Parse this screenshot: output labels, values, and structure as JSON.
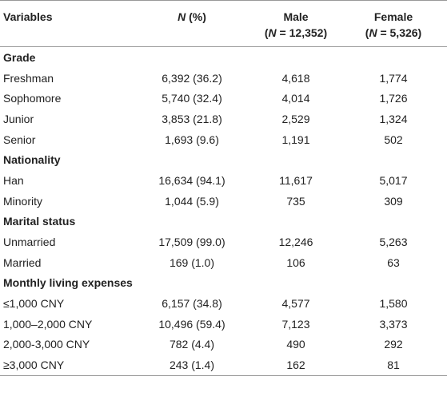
{
  "header": {
    "cells": [
      [
        [
          {
            "text": "Variables",
            "italic": false
          }
        ]
      ],
      [
        [
          {
            "text": "N",
            "italic": true
          },
          {
            "text": " (%)",
            "italic": false
          }
        ]
      ],
      [
        [
          {
            "text": "Male",
            "italic": false
          }
        ],
        [
          {
            "text": "(",
            "italic": false
          },
          {
            "text": "N",
            "italic": true
          },
          {
            "text": " = 12,352)",
            "italic": false
          }
        ]
      ],
      [
        [
          {
            "text": "Female",
            "italic": false
          }
        ],
        [
          {
            "text": "(",
            "italic": false
          },
          {
            "text": "N",
            "italic": true
          },
          {
            "text": " = 5,326)",
            "italic": false
          }
        ]
      ]
    ]
  },
  "sections": [
    {
      "title": "Grade",
      "rows": [
        [
          "Freshman",
          "6,392 (36.2)",
          "4,618",
          "1,774"
        ],
        [
          "Sophomore",
          "5,740 (32.4)",
          "4,014",
          "1,726"
        ],
        [
          "Junior",
          "3,853 (21.8)",
          "2,529",
          "1,324"
        ],
        [
          "Senior",
          "1,693 (9.6)",
          "1,191",
          "502"
        ]
      ]
    },
    {
      "title": "Nationality",
      "rows": [
        [
          "Han",
          "16,634 (94.1)",
          "11,617",
          "5,017"
        ],
        [
          "Minority",
          "1,044 (5.9)",
          "735",
          "309"
        ]
      ]
    },
    {
      "title": "Marital status",
      "rows": [
        [
          "Unmarried",
          "17,509 (99.0)",
          "12,246",
          "5,263"
        ],
        [
          "Married",
          "169 (1.0)",
          "106",
          "63"
        ]
      ]
    },
    {
      "title": "Monthly living expenses",
      "rows": [
        [
          "≤1,000 CNY",
          "6,157 (34.8)",
          "4,577",
          "1,580"
        ],
        [
          "1,000–2,000 CNY",
          "10,496 (59.4)",
          "7,123",
          "3,373"
        ],
        [
          "2,000-3,000 CNY",
          "782 (4.4)",
          "490",
          "292"
        ],
        [
          "≥3,000 CNY",
          "243 (1.4)",
          "162",
          "81"
        ]
      ]
    }
  ]
}
